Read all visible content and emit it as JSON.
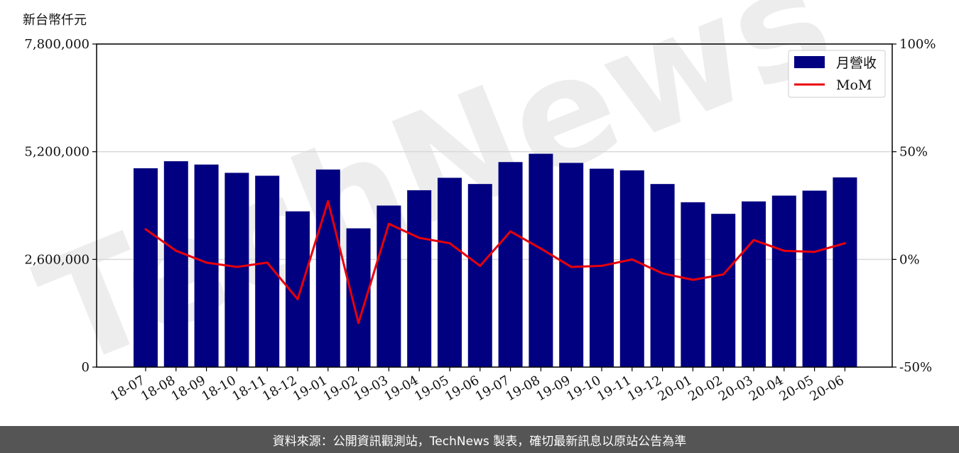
{
  "unit_label": "新台幣仟元",
  "footer_text": "資料來源：公開資訊觀測站，TechNews 製表，確切最新訊息以原站公告為準",
  "watermark_text": "TechNews",
  "colors": {
    "bar": "#000080",
    "line": "#e8000b",
    "grid": "#d9d9d9"
  },
  "chart_data": {
    "type": "bar",
    "categories": [
      "18-07",
      "18-08",
      "18-09",
      "18-10",
      "18-11",
      "18-12",
      "19-01",
      "19-02",
      "19-03",
      "19-04",
      "19-05",
      "19-06",
      "19-07",
      "19-08",
      "19-09",
      "19-10",
      "19-11",
      "19-12",
      "20-01",
      "20-02",
      "20-03",
      "20-04",
      "20-05",
      "20-06"
    ],
    "series": [
      {
        "name": "月營收",
        "type": "bar",
        "axis": "left",
        "values": [
          4800000,
          4970000,
          4890000,
          4690000,
          4620000,
          3760000,
          4770000,
          3350000,
          3900000,
          4270000,
          4570000,
          4420000,
          4950000,
          5150000,
          4930000,
          4790000,
          4750000,
          4420000,
          3980000,
          3700000,
          4000000,
          4140000,
          4260000,
          4580000
        ]
      },
      {
        "name": "MoM",
        "type": "line",
        "axis": "right",
        "values": [
          14,
          4,
          -1.5,
          -3.5,
          -1.5,
          -18.5,
          27,
          -29.5,
          16.5,
          10,
          7.5,
          -3,
          13,
          5,
          -3.5,
          -3,
          0,
          -6.5,
          -9.5,
          -7,
          9,
          4,
          3.5,
          7.5
        ]
      }
    ],
    "y_left": {
      "lim": [
        0,
        7800000
      ],
      "ticks": [
        "0",
        "2,600,000",
        "5,200,000",
        "7,800,000"
      ]
    },
    "y_right": {
      "lim": [
        -50,
        100
      ],
      "ticks": [
        "-50%",
        "0%",
        "50%",
        "100%"
      ]
    },
    "grid": "horizontal",
    "legend": "top-right"
  }
}
